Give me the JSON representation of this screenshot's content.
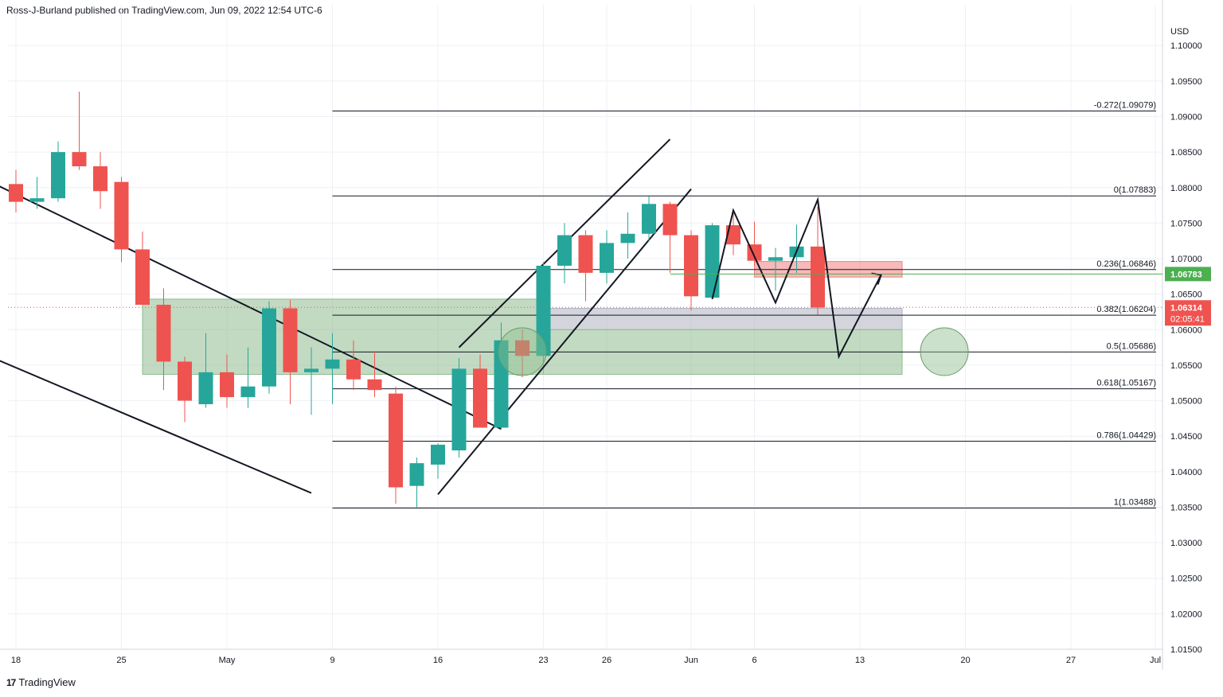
{
  "header": {
    "text": "Ross-J-Burland published on TradingView.com, Jun 09, 2022 12:54 UTC-6"
  },
  "footer": {
    "brand": "TradingView",
    "logo_icon": "tradingview-logo-icon"
  },
  "colors": {
    "up": "#26a69a",
    "down": "#ef5350",
    "fib_line": "#131722",
    "zone_green": "#8fbc8f",
    "zone_gray": "#b0b3c0",
    "zone_red": "#f08080",
    "price_tag_green": "#4caf50",
    "price_tag_red": "#ef5350"
  },
  "chart_data": {
    "type": "candlestick",
    "symbol_currency": "USD",
    "ylim": [
      1.015,
      1.1035
    ],
    "y_ticks": [
      "1.10000",
      "1.09500",
      "1.09000",
      "1.08500",
      "1.08000",
      "1.07500",
      "1.07000",
      "1.06500",
      "1.06000",
      "1.05500",
      "1.05000",
      "1.04500",
      "1.04000",
      "1.03500",
      "1.03000",
      "1.02500",
      "1.02000",
      "1.01500"
    ],
    "x_ticks": [
      {
        "label": "18",
        "date": "2022-04-18"
      },
      {
        "label": "25",
        "date": "2022-04-25"
      },
      {
        "label": "May",
        "date": "2022-05-02"
      },
      {
        "label": "9",
        "date": "2022-05-09"
      },
      {
        "label": "16",
        "date": "2022-05-16"
      },
      {
        "label": "23",
        "date": "2022-05-23"
      },
      {
        "label": "26",
        "date": "2022-05-26"
      },
      {
        "label": "Jun",
        "date": "2022-06-01"
      },
      {
        "label": "6",
        "date": "2022-06-06"
      },
      {
        "label": "13",
        "date": "2022-06-13"
      },
      {
        "label": "20",
        "date": "2022-06-20"
      },
      {
        "label": "27",
        "date": "2022-06-27"
      },
      {
        "label": "Jul",
        "date": "2022-07-01"
      }
    ],
    "candles": [
      {
        "date": "2022-04-18",
        "o": 1.0805,
        "h": 1.0825,
        "l": 1.0765,
        "c": 1.078
      },
      {
        "date": "2022-04-19",
        "o": 1.078,
        "h": 1.0815,
        "l": 1.077,
        "c": 1.0785
      },
      {
        "date": "2022-04-20",
        "o": 1.0785,
        "h": 1.0865,
        "l": 1.078,
        "c": 1.085
      },
      {
        "date": "2022-04-21",
        "o": 1.085,
        "h": 1.0935,
        "l": 1.0825,
        "c": 1.083
      },
      {
        "date": "2022-04-22",
        "o": 1.083,
        "h": 1.085,
        "l": 1.077,
        "c": 1.0795
      },
      {
        "date": "2022-04-25",
        "o": 1.0808,
        "h": 1.0815,
        "l": 1.0695,
        "c": 1.0713
      },
      {
        "date": "2022-04-26",
        "o": 1.0713,
        "h": 1.0738,
        "l": 1.0635,
        "c": 1.0635
      },
      {
        "date": "2022-04-27",
        "o": 1.0635,
        "h": 1.0658,
        "l": 1.0515,
        "c": 1.0555
      },
      {
        "date": "2022-04-28",
        "o": 1.0555,
        "h": 1.0562,
        "l": 1.047,
        "c": 1.05
      },
      {
        "date": "2022-04-29",
        "o": 1.0495,
        "h": 1.0595,
        "l": 1.049,
        "c": 1.054
      },
      {
        "date": "2022-05-02",
        "o": 1.054,
        "h": 1.0565,
        "l": 1.049,
        "c": 1.0505
      },
      {
        "date": "2022-05-03",
        "o": 1.0505,
        "h": 1.0575,
        "l": 1.049,
        "c": 1.052
      },
      {
        "date": "2022-05-04",
        "o": 1.052,
        "h": 1.064,
        "l": 1.051,
        "c": 1.063
      },
      {
        "date": "2022-05-05",
        "o": 1.063,
        "h": 1.0642,
        "l": 1.0495,
        "c": 1.054
      },
      {
        "date": "2022-05-06",
        "o": 1.054,
        "h": 1.0575,
        "l": 1.048,
        "c": 1.0545
      },
      {
        "date": "2022-05-09",
        "o": 1.0545,
        "h": 1.0595,
        "l": 1.0495,
        "c": 1.0558
      },
      {
        "date": "2022-05-10",
        "o": 1.0558,
        "h": 1.0585,
        "l": 1.0515,
        "c": 1.053
      },
      {
        "date": "2022-05-11",
        "o": 1.053,
        "h": 1.057,
        "l": 1.0505,
        "c": 1.0515
      },
      {
        "date": "2022-05-12",
        "o": 1.051,
        "h": 1.052,
        "l": 1.0355,
        "c": 1.0378
      },
      {
        "date": "2022-05-13",
        "o": 1.038,
        "h": 1.042,
        "l": 1.035,
        "c": 1.0412
      },
      {
        "date": "2022-05-16",
        "o": 1.041,
        "h": 1.044,
        "l": 1.039,
        "c": 1.0438
      },
      {
        "date": "2022-05-17",
        "o": 1.043,
        "h": 1.056,
        "l": 1.042,
        "c": 1.0545
      },
      {
        "date": "2022-05-18",
        "o": 1.0545,
        "h": 1.0565,
        "l": 1.0462,
        "c": 1.0462
      },
      {
        "date": "2022-05-19",
        "o": 1.0462,
        "h": 1.061,
        "l": 1.046,
        "c": 1.0585
      },
      {
        "date": "2022-05-20",
        "o": 1.0585,
        "h": 1.06,
        "l": 1.0533,
        "c": 1.0563
      },
      {
        "date": "2022-05-23",
        "o": 1.0563,
        "h": 1.0695,
        "l": 1.0555,
        "c": 1.069
      },
      {
        "date": "2022-05-24",
        "o": 1.069,
        "h": 1.075,
        "l": 1.0665,
        "c": 1.0733
      },
      {
        "date": "2022-05-25",
        "o": 1.0733,
        "h": 1.074,
        "l": 1.064,
        "c": 1.068
      },
      {
        "date": "2022-05-26",
        "o": 1.068,
        "h": 1.074,
        "l": 1.0665,
        "c": 1.0722
      },
      {
        "date": "2022-05-27",
        "o": 1.0722,
        "h": 1.0765,
        "l": 1.07,
        "c": 1.0735
      },
      {
        "date": "2022-05-30",
        "o": 1.0735,
        "h": 1.0788,
        "l": 1.0725,
        "c": 1.0777
      },
      {
        "date": "2022-05-31",
        "o": 1.0777,
        "h": 1.078,
        "l": 1.068,
        "c": 1.0733
      },
      {
        "date": "2022-06-01",
        "o": 1.0733,
        "h": 1.074,
        "l": 1.0627,
        "c": 1.0647
      },
      {
        "date": "2022-06-02",
        "o": 1.0645,
        "h": 1.075,
        "l": 1.0645,
        "c": 1.0747
      },
      {
        "date": "2022-06-03",
        "o": 1.0747,
        "h": 1.0765,
        "l": 1.0705,
        "c": 1.072
      },
      {
        "date": "2022-06-06",
        "o": 1.072,
        "h": 1.0752,
        "l": 1.069,
        "c": 1.0697
      },
      {
        "date": "2022-06-07",
        "o": 1.0697,
        "h": 1.0715,
        "l": 1.0655,
        "c": 1.0702
      },
      {
        "date": "2022-06-08",
        "o": 1.0702,
        "h": 1.0748,
        "l": 1.068,
        "c": 1.0717
      },
      {
        "date": "2022-06-09",
        "o": 1.0717,
        "h": 1.0773,
        "l": 1.0621,
        "c": 1.0631
      }
    ],
    "fib_levels": [
      {
        "label": "-0.272(1.09079)",
        "value": 1.09079
      },
      {
        "label": "0(1.07883)",
        "value": 1.07883
      },
      {
        "label": "0.236(1.06846)",
        "value": 1.06846
      },
      {
        "label": "0.382(1.06204)",
        "value": 1.06204
      },
      {
        "label": "0.5(1.05686)",
        "value": 1.05686
      },
      {
        "label": "0.618(1.05167)",
        "value": 1.05167
      },
      {
        "label": "0.786(1.04429)",
        "value": 1.04429
      },
      {
        "label": "1(1.03488)",
        "value": 1.03488
      }
    ],
    "fib_start_date": "2022-05-09",
    "price_tags": [
      {
        "value": 1.06783,
        "label": "1.06783",
        "kind": "line"
      },
      {
        "value": 1.06314,
        "label": "1.06314",
        "countdown": "02:05:41",
        "kind": "last"
      }
    ],
    "zones": [
      {
        "name": "support-zone-left",
        "from": "2022-04-26",
        "to": "2022-05-23",
        "top": 1.0643,
        "bottom": 1.0537,
        "color": "green"
      },
      {
        "name": "support-zone-gray",
        "from": "2022-05-23",
        "to": "2022-06-15",
        "top": 1.063,
        "bottom": 1.06,
        "color": "gray"
      },
      {
        "name": "support-zone-right",
        "from": "2022-05-23",
        "to": "2022-06-15",
        "top": 1.06,
        "bottom": 1.0537,
        "color": "green"
      },
      {
        "name": "resistance-zone",
        "from": "2022-06-06",
        "to": "2022-06-15",
        "top": 1.0696,
        "bottom": 1.0674,
        "color": "red"
      }
    ],
    "trendlines": [
      {
        "name": "descending-channel-upper",
        "x1": "2022-04-14",
        "y1": 1.092,
        "x2": "2022-05-19",
        "y2": 1.046
      },
      {
        "name": "descending-channel-lower",
        "x1": "2022-04-14",
        "y1": 1.066,
        "x2": "2022-05-06",
        "y2": 1.037
      },
      {
        "name": "ascending-channel-upper",
        "x1": "2022-05-17",
        "y1": 1.0575,
        "x2": "2022-05-31",
        "y2": 1.0868
      },
      {
        "name": "ascending-channel-lower",
        "x1": "2022-05-16",
        "y1": 1.0368,
        "x2": "2022-06-01",
        "y2": 1.0798
      }
    ],
    "projection_path": [
      {
        "date": "2022-06-02",
        "y": 1.0643
      },
      {
        "date": "2022-06-03",
        "y": 1.0768
      },
      {
        "date": "2022-06-07",
        "y": 1.0638
      },
      {
        "date": "2022-06-09",
        "y": 1.0783
      },
      {
        "date": "2022-06-10",
        "y": 1.0562
      },
      {
        "date": "2022-06-14",
        "y": 1.0677
      }
    ],
    "circles": [
      {
        "name": "retest-circle",
        "date": "2022-05-20",
        "y": 1.0569
      },
      {
        "name": "target-circle",
        "date": "2022-06-17",
        "y": 1.0569
      }
    ]
  }
}
